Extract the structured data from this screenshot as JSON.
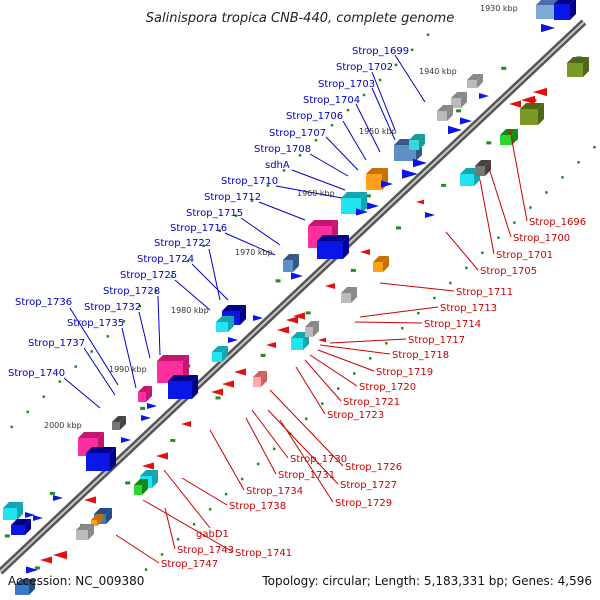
{
  "title": "Salinispora tropica CNB-440, complete genome",
  "footer": {
    "accession": "Accession: NC_009380",
    "summary": "Topology: circular; Length: 5,183,331 bp; Genes: 4,596"
  },
  "colors": {
    "forward_label": "#0000cc",
    "reverse_label": "#cc0000",
    "backbone": "#888888",
    "tick": "#228b22"
  },
  "kbp_marks": [
    "1930 kbp",
    "1940 kbp",
    "1950 kbp",
    "1960 kbp",
    "1970 kbp",
    "1980 kbp",
    "1990 kbp",
    "2000 kbp"
  ],
  "forward_labels": [
    "Strop_1699",
    "Strop_1702",
    "Strop_1703",
    "Strop_1704",
    "Strop_1706",
    "Strop_1707",
    "Strop_1708",
    "sdhA",
    "Strop_1710",
    "Strop_1712",
    "Strop_1715",
    "Strop_1716",
    "Strop_1722",
    "Strop_1724",
    "Strop_1725",
    "Strop_1728",
    "Strop_1732",
    "Strop_1735",
    "Strop_1736",
    "Strop_1737",
    "Strop_1740"
  ],
  "reverse_labels": [
    "Strop_1696",
    "Strop_1700",
    "Strop_1701",
    "Strop_1705",
    "Strop_1711",
    "Strop_1713",
    "Strop_1714",
    "Strop_1717",
    "Strop_1718",
    "Strop_1719",
    "Strop_1720",
    "Strop_1721",
    "Strop_1723",
    "Strop_1726",
    "Strop_1727",
    "Strop_1729",
    "Strop_1730",
    "Strop_1731",
    "Strop_1734",
    "Strop_1738",
    "gabD1",
    "Strop_1741",
    "Strop_1743",
    "Strop_1747"
  ]
}
